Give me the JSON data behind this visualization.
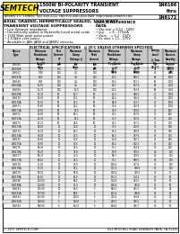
{
  "title_left": "1500W BI-POLARITY TRANSIENT\nVOLTAGE SUPPRESSORS",
  "title_right": "1N6166\nthru\n1N6172",
  "date_line": "January 13, 1998",
  "contact_line": "TEL: 800-446-2111  FAX:800-446-0444 WEB: http://www.semtech.com",
  "section1_title": "AXIAL GRADED, HERMETICALLY SEALED, 1500 WATT\nTRANSIENT VOLTAGE SUPPRESSORS",
  "section2_title": "QUICK REFERENCE\nDATA",
  "bullets": [
    "Low dynamic impedance",
    "Hermetically sealed in Nickelville fused metal oxide",
    "1500 Watt peak pulse power",
    "2.5 Watt continuous",
    "Available in JAN, JANS and JANSV versions"
  ],
  "quick_ref": [
    "Vbr min = 6.12 - 188V",
    "Ipp     = 8 - 175mA",
    "Vwm    = 5.2 - 150V",
    "Vc max = 11 - 275V"
  ],
  "table_title": "ELECTRICAL SPECIFICATIONS   @ 25°C UNLESS OTHERWISE SPECIFIED",
  "header_labels": [
    "Device\nType",
    "Minimum\nBreakdown\nVoltage\nVbr@IT\nVolts",
    "Test\nCurrent\nIT\nmA",
    "Maximum\nClamp\nVoltage @\nIpp\nVolts",
    "Maximum\nPeak\nCurrent\nIpp\nμA",
    "Minimum\nBreakdown\nVoltage\nPer Diode\n@ IT\nVolts",
    "Maximum\nClamp\nVoltage\nPer Diode\n@ IT\nAmps",
    "Energy\nLevel\n@ 1ms\nMin.\n10-2°C",
    "Maximum\nReverse\nStandby\nCurrent\n@25°C\nμA"
  ],
  "table_rows": [
    [
      "1N6166",
      "6.12",
      "200",
      "7.8",
      "200",
      "13.1",
      "538.4",
      "42",
      "10000"
    ],
    [
      "1N6166A",
      "7.00",
      "175",
      "4.7",
      "175",
      "12.3",
      "477.7",
      "48",
      "10000"
    ],
    [
      "1N6167",
      "7.88",
      "150",
      "4.0",
      "150",
      "14.4",
      "573.9",
      "49",
      "8000"
    ],
    [
      "1N6167A",
      "8.65",
      "125",
      "4.3",
      "125",
      "16.3",
      "548.2",
      "54",
      "5000"
    ],
    [
      "1N6168",
      "9.45",
      "100",
      "4.3",
      "100",
      "16.4",
      "523.1",
      "60",
      "4000"
    ],
    [
      "1N6168A",
      "10.50",
      "100",
      "4.5",
      "100",
      "19.7",
      "547.4",
      "63",
      "4000"
    ],
    [
      "1N6169",
      "11.70",
      "100",
      "12.0",
      "100",
      "20.3",
      "373.8",
      "69",
      "3000"
    ],
    [
      "1N6169A",
      "13.30",
      "50",
      "12.7",
      "50",
      "24.3",
      "388.5",
      "71",
      "1000"
    ],
    [
      "1N6170",
      "14.80",
      "50",
      "13.1",
      "50",
      "26.4",
      "398.4",
      "72",
      "1000"
    ],
    [
      "1N6170A",
      "16.10",
      "50",
      "14.1",
      "50",
      "28.8",
      "413.7",
      "73",
      "1000"
    ],
    [
      "1N6171",
      "17.60",
      "50",
      "14.2",
      "50",
      "30.4",
      "372.8",
      "72",
      "1000"
    ],
    [
      "1N6171A",
      "19.90",
      "50",
      "16.3",
      "50",
      "33.5",
      "374.0",
      "71",
      "600"
    ],
    [
      "1N6172",
      "22.80",
      "50",
      "18.3",
      "50",
      "37.1",
      "357.0",
      "70",
      "600"
    ],
    [
      "1N6172A",
      "24.30",
      "50",
      "19.3",
      "50",
      "40.3",
      "372.0",
      "70",
      "400"
    ],
    [
      "1N6173",
      "27.20",
      "50",
      "22.5",
      "50",
      "43.1",
      "327.1",
      "71",
      "400"
    ],
    [
      "1N6173A",
      "29.50",
      "10",
      "22.8",
      "10",
      "47.5",
      "352.0",
      "71",
      "350"
    ],
    [
      "1N6174",
      "33.30",
      "10",
      "25.5",
      "10",
      "51.2",
      "348.9",
      "72",
      "350"
    ],
    [
      "1N6174A",
      "35.80",
      "10",
      "27.5",
      "10",
      "56.3",
      "357.5",
      "73",
      "300"
    ],
    [
      "1N6175",
      "40.40",
      "10",
      "30.5",
      "10",
      "61.8",
      "362.7",
      "73",
      "250"
    ],
    [
      "1N6175A",
      "43.60",
      "10",
      "33.5",
      "10",
      "67.2",
      "362.3",
      "73",
      "200"
    ],
    [
      "1N6176",
      "48.40",
      "10",
      "36.5",
      "10",
      "75.2",
      "374.8",
      "73",
      "200"
    ],
    [
      "1N6176A",
      "53.20",
      "10",
      "37.8",
      "10",
      "78.9",
      "379.2",
      "74",
      "150"
    ],
    [
      "1N6177",
      "58.30",
      "10",
      "41.0",
      "10",
      "88.3",
      "379.5",
      "74",
      "150"
    ],
    [
      "1N6177A",
      "64.10",
      "10",
      "44.3",
      "10",
      "97.1",
      "380.5",
      "74",
      "100"
    ],
    [
      "1N6178",
      "71.80",
      "10",
      "47.0",
      "10",
      "108.4",
      "397.4",
      "73",
      "100"
    ],
    [
      "1N6178A",
      "77.00",
      "10",
      "52.1",
      "10",
      "115.3",
      "398.9",
      "73",
      "100"
    ],
    [
      "1N6179",
      "85.50",
      "10",
      "57.0",
      "10",
      "128.4",
      "409.3",
      "73",
      "75"
    ],
    [
      "1N6179A",
      "94.00",
      "10",
      "63.0",
      "10",
      "141.3",
      "414.2",
      "73",
      "50"
    ],
    [
      "1N6180",
      "104.00",
      "10",
      "69.0",
      "10",
      "154.8",
      "393.5",
      "73",
      "50"
    ],
    [
      "1N6180A",
      "114.00",
      "10",
      "75.0",
      "10",
      "168.4",
      "395.0",
      "73",
      "50"
    ],
    [
      "1N6181",
      "125.00",
      "10",
      "82.0",
      "5",
      "184.3",
      "391.5",
      "73",
      "25"
    ],
    [
      "1N6181A",
      "137.00",
      "10",
      "90.0",
      "5",
      "201.4",
      "396.8",
      "73",
      "25"
    ],
    [
      "1N6182",
      "152.00",
      "5",
      "100.0",
      "5",
      "219.4",
      "374.8",
      "72",
      "10"
    ],
    [
      "1N6182A",
      "168.00",
      "5",
      "110.0",
      "5",
      "240.7",
      "376.5",
      "72",
      "10"
    ],
    [
      "1N6183",
      "188.00",
      "5",
      "122.0",
      "5",
      "264.8",
      "376.7",
      "72",
      "10"
    ]
  ],
  "footer_left": "© 1997 SEMTECH CORP.",
  "footer_right": "652 MITCHELL ROAD NEWBURY PARK, CA 91320",
  "logo_text": "SEMTECH",
  "logo_bg": "#FFE800",
  "table_header_bg": "#C8C8C8",
  "alt_row_bg": "#E8E8E8",
  "white_bg": "#FFFFFF",
  "border_color": "#000000"
}
